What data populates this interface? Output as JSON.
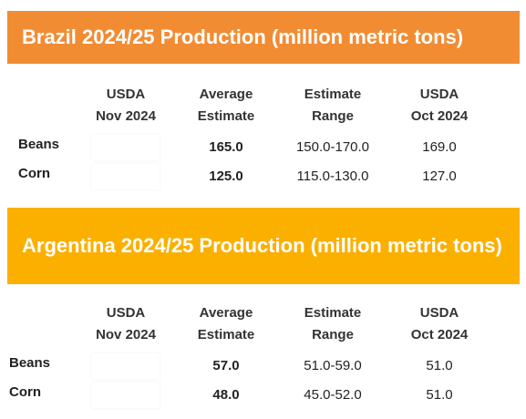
{
  "sections": [
    {
      "title": "Brazil 2024/25 Production (million metric tons)",
      "table": {
        "header": [
          "USDA\nNov 2024",
          "Average\nEstimate",
          "Estimate\nRange",
          "USDA\nOct 2024"
        ],
        "rows": [
          [
            "Beans",
            null,
            "165.0",
            "150.0-170.0",
            "169.0"
          ],
          [
            "Corn",
            null,
            "125.0",
            "115.0-130.0",
            "127.0"
          ]
        ]
      }
    },
    {
      "title": "Argentina 2024/25 Production (million metric tons)",
      "table": {
        "header": [
          "USDA\nNov 2024",
          "Average\nEstimate",
          "Estimate\nRange",
          "USDA\nOct 2024"
        ],
        "rows": [
          [
            "Beans",
            null,
            "57.0",
            "51.0-59.0",
            "51.0"
          ],
          [
            "Corn",
            null,
            "48.0",
            "45.0-52.0",
            "51.0"
          ]
        ]
      }
    }
  ]
}
